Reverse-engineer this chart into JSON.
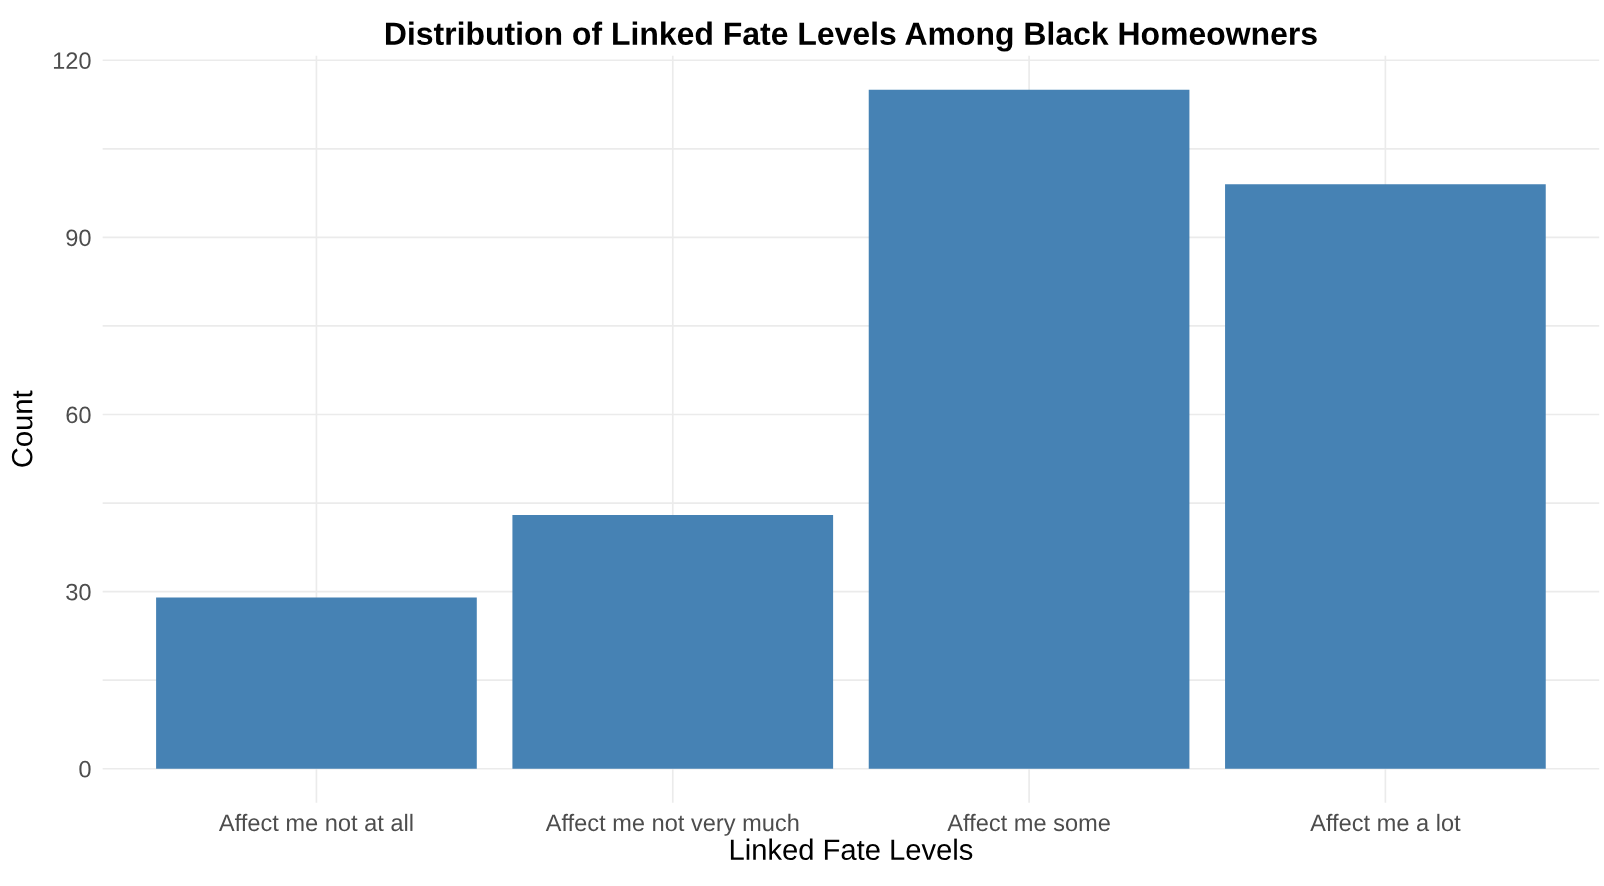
{
  "chart_data": {
    "type": "bar",
    "title": "Distribution of Linked Fate Levels Among Black Homeowners",
    "xlabel": "Linked Fate Levels",
    "ylabel": "Count",
    "categories": [
      "Affect me not at all",
      "Affect me not very much",
      "Affect me some",
      "Affect me a lot"
    ],
    "values": [
      29,
      43,
      115,
      99
    ],
    "color": "#4682b4",
    "ylim": [
      -5.75,
      120.75
    ],
    "yticks": [
      0,
      {
        "value": 15,
        "label": null
      },
      30,
      {
        "value": 45,
        "label": null
      },
      60,
      {
        "value": 75,
        "label": null
      },
      90,
      {
        "value": 105,
        "label": null
      },
      120
    ],
    "grid": true
  }
}
